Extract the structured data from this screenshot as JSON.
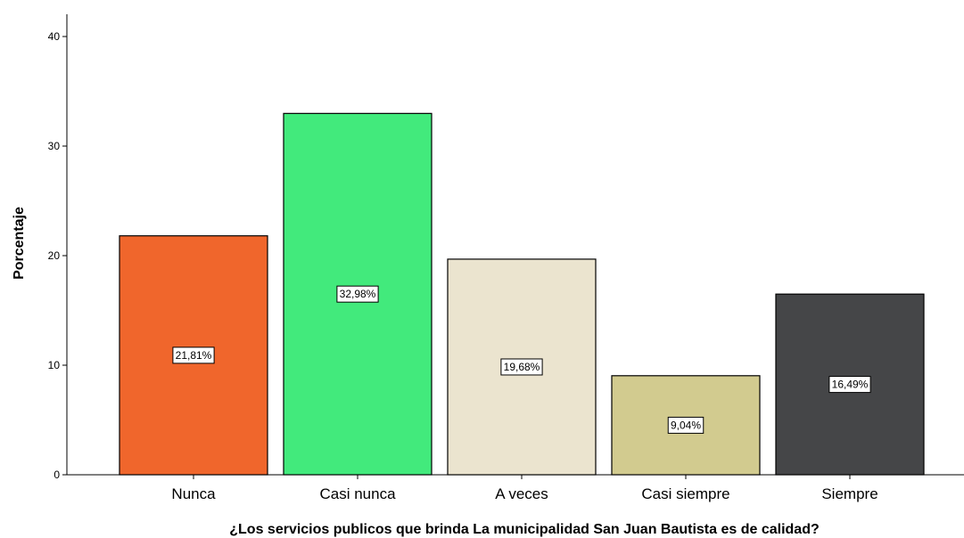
{
  "chart_data": {
    "type": "bar",
    "categories": [
      "Nunca",
      "Casi nunca",
      "A veces",
      "Casi siempre",
      "Siempre"
    ],
    "values": [
      21.81,
      32.98,
      19.68,
      9.04,
      16.49
    ],
    "data_labels": [
      "21,81%",
      "32,98%",
      "19,68%",
      "9,04%",
      "16,49%"
    ],
    "colors": [
      "#f0662c",
      "#42ea7c",
      "#ebe4cf",
      "#d2cb8f",
      "#454648"
    ],
    "xlabel": "¿Los servicios publicos que brinda La municipalidad San Juan Bautista es de calidad?",
    "ylabel": "Porcentaje",
    "ylim": [
      0,
      40
    ],
    "yticks": [
      "0",
      "10",
      "20",
      "30",
      "40"
    ],
    "grid": false,
    "legend": "none"
  }
}
